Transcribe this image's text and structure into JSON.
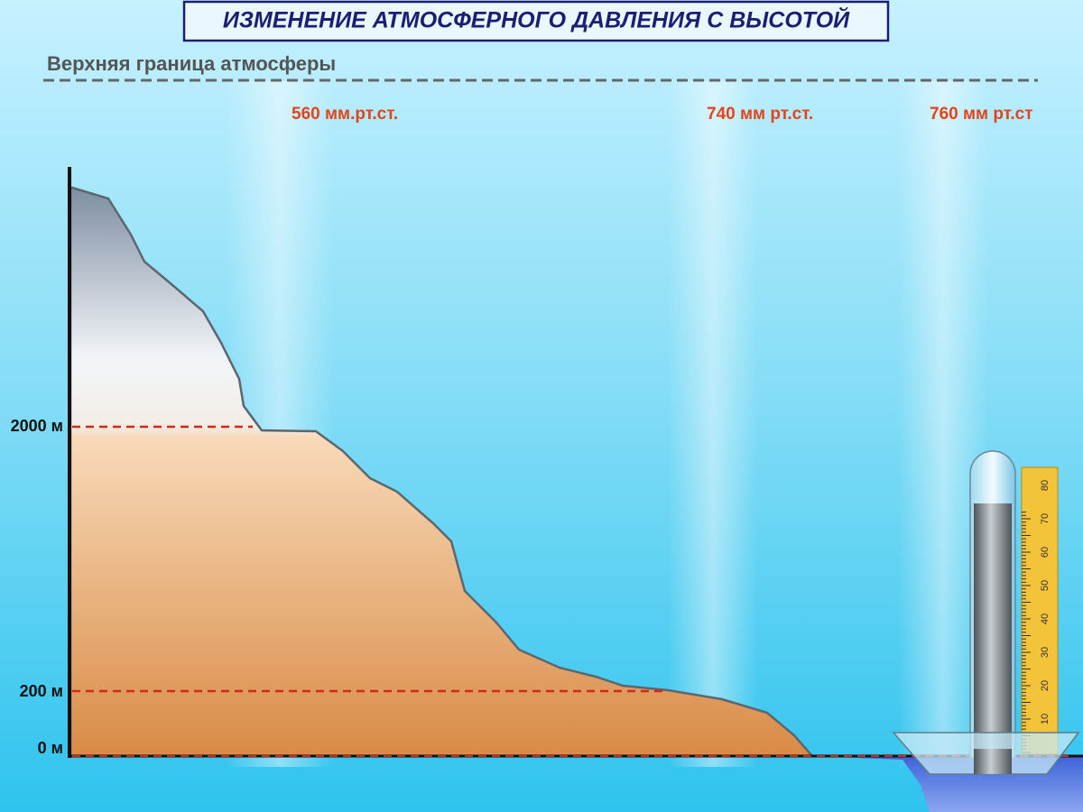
{
  "title": "ИЗМЕНЕНИЕ АТМОСФЕРНОГО ДАВЛЕНИЯ С ВЫСОТОЙ",
  "upper_boundary": "Верхняя граница атмосферы",
  "pressure_labels": [
    "560 мм.рт.ст.",
    "740 мм рт.ст.",
    "760 мм рт.ст"
  ],
  "altitude_labels": [
    "2000 м",
    "200 м",
    "0 м"
  ],
  "barometer_scale": [
    10,
    20,
    30,
    40,
    50,
    60,
    70,
    80
  ]
}
